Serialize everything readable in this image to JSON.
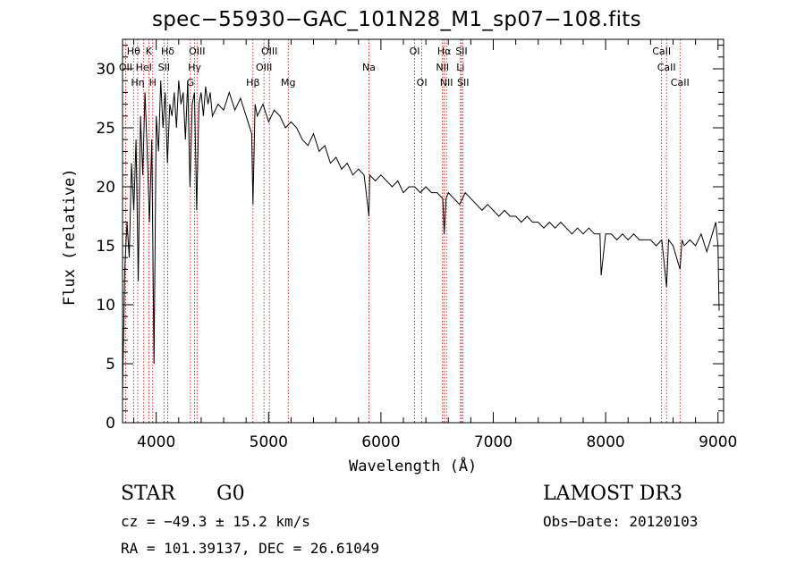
{
  "chart_data": {
    "type": "line",
    "title": "spec−55930−GAC_101N28_M1_sp07−108.fits",
    "xlabel": "Wavelength (Å)",
    "ylabel": "Flux (relative)",
    "xlim": [
      3700,
      9050
    ],
    "ylim": [
      0,
      32.5
    ],
    "xticks": [
      4000,
      5000,
      6000,
      7000,
      8000,
      9000
    ],
    "yticks": [
      0,
      5,
      10,
      15,
      20,
      25,
      30
    ],
    "x": [
      3700,
      3720,
      3740,
      3760,
      3780,
      3800,
      3820,
      3840,
      3860,
      3880,
      3900,
      3920,
      3940,
      3960,
      3980,
      4000,
      4020,
      4040,
      4060,
      4080,
      4100,
      4120,
      4140,
      4160,
      4180,
      4200,
      4220,
      4240,
      4260,
      4280,
      4300,
      4320,
      4340,
      4360,
      4380,
      4400,
      4420,
      4440,
      4460,
      4480,
      4500,
      4550,
      4600,
      4650,
      4700,
      4750,
      4800,
      4850,
      4861,
      4880,
      4900,
      4950,
      5000,
      5050,
      5100,
      5150,
      5200,
      5250,
      5300,
      5350,
      5400,
      5450,
      5500,
      5550,
      5600,
      5650,
      5700,
      5750,
      5800,
      5850,
      5893,
      5900,
      5950,
      6000,
      6050,
      6100,
      6150,
      6200,
      6250,
      6300,
      6350,
      6400,
      6450,
      6500,
      6550,
      6563,
      6580,
      6600,
      6650,
      6700,
      6750,
      6800,
      6850,
      6900,
      6950,
      7000,
      7050,
      7100,
      7150,
      7200,
      7250,
      7300,
      7350,
      7400,
      7450,
      7500,
      7550,
      7600,
      7650,
      7700,
      7750,
      7800,
      7850,
      7900,
      7950,
      7960,
      8000,
      8050,
      8100,
      8150,
      8200,
      8250,
      8300,
      8350,
      8400,
      8450,
      8500,
      8542,
      8560,
      8600,
      8662,
      8680,
      8700,
      8750,
      8800,
      8850,
      8900,
      8950,
      8980,
      9000,
      9010
    ],
    "flux": [
      2.5,
      13,
      17,
      14,
      22,
      18,
      24,
      12,
      26,
      21,
      28,
      23,
      17,
      24,
      5,
      26,
      23,
      29,
      25,
      28,
      22,
      27,
      26,
      28,
      25,
      29,
      27,
      28,
      24,
      29,
      20,
      27,
      28,
      18,
      27,
      28,
      26,
      28.5,
      27,
      28,
      26,
      27,
      26.5,
      28,
      26.5,
      27.5,
      26,
      24.5,
      18.5,
      27,
      26,
      27,
      25.5,
      26.5,
      26,
      25,
      25.5,
      25,
      24,
      23.5,
      24.5,
      23,
      23.5,
      22,
      22.5,
      21.5,
      22,
      21,
      21.5,
      21,
      17.5,
      21,
      20.5,
      21,
      20.5,
      20,
      20.5,
      19.5,
      20,
      20,
      19.5,
      20,
      19.5,
      19.5,
      19,
      16,
      19,
      19.5,
      19,
      18.5,
      19.5,
      19,
      18.5,
      18,
      18.5,
      18,
      17.5,
      18,
      17.5,
      17.5,
      17,
      17.5,
      17,
      17,
      16.5,
      17,
      16.5,
      17,
      16.5,
      16,
      16.5,
      16,
      16.5,
      16,
      16,
      12.5,
      16,
      16,
      15.5,
      16,
      15.5,
      16,
      15.5,
      15.5,
      15.5,
      15,
      15.5,
      11.5,
      15.5,
      15,
      13,
      15.5,
      15,
      15.5,
      15,
      16,
      14.5,
      16,
      17,
      15,
      9.5
    ],
    "lines_top": [
      {
        "label": "Hθ",
        "x": 3798
      },
      {
        "label": "K",
        "x": 3934
      },
      {
        "label": "Hδ",
        "x": 4102
      },
      {
        "label": "OIII",
        "x": 4363
      },
      {
        "label": "OIII",
        "x": 5007
      },
      {
        "label": "OI",
        "x": 6300
      },
      {
        "label": "Hα",
        "x": 6563
      },
      {
        "label": "SII",
        "x": 6717
      },
      {
        "label": "CaII",
        "x": 8498
      }
    ],
    "lines_mid": [
      {
        "label": "OII",
        "x": 3727
      },
      {
        "label": "HeI",
        "x": 3889
      },
      {
        "label": "SII",
        "x": 4069
      },
      {
        "label": "Hγ",
        "x": 4341
      },
      {
        "label": "OIII",
        "x": 4959
      },
      {
        "label": "Na",
        "x": 5893
      },
      {
        "label": "NII",
        "x": 6548
      },
      {
        "label": "Li",
        "x": 6708
      },
      {
        "label": "CaII",
        "x": 8542
      }
    ],
    "lines_bot": [
      {
        "label": "Hη",
        "x": 3835
      },
      {
        "label": "H",
        "x": 3969
      },
      {
        "label": "G",
        "x": 4304
      },
      {
        "label": "Hβ",
        "x": 4861
      },
      {
        "label": "Mg",
        "x": 5175
      },
      {
        "label": "OI",
        "x": 6364
      },
      {
        "label": "NII",
        "x": 6583
      },
      {
        "label": "SII",
        "x": 6731
      },
      {
        "label": "CaII",
        "x": 8662
      }
    ]
  },
  "info": {
    "class": "STAR",
    "subclass": "G0",
    "survey": "LAMOST DR3",
    "cz": "cz = −49.3 ± 15.2 km/s",
    "obs_date": "Obs−Date: 20120103",
    "radec": "RA = 101.39137, DEC =  26.61049"
  },
  "colors": {
    "line_marker": "#cc0000",
    "spectrum": "#000000"
  }
}
